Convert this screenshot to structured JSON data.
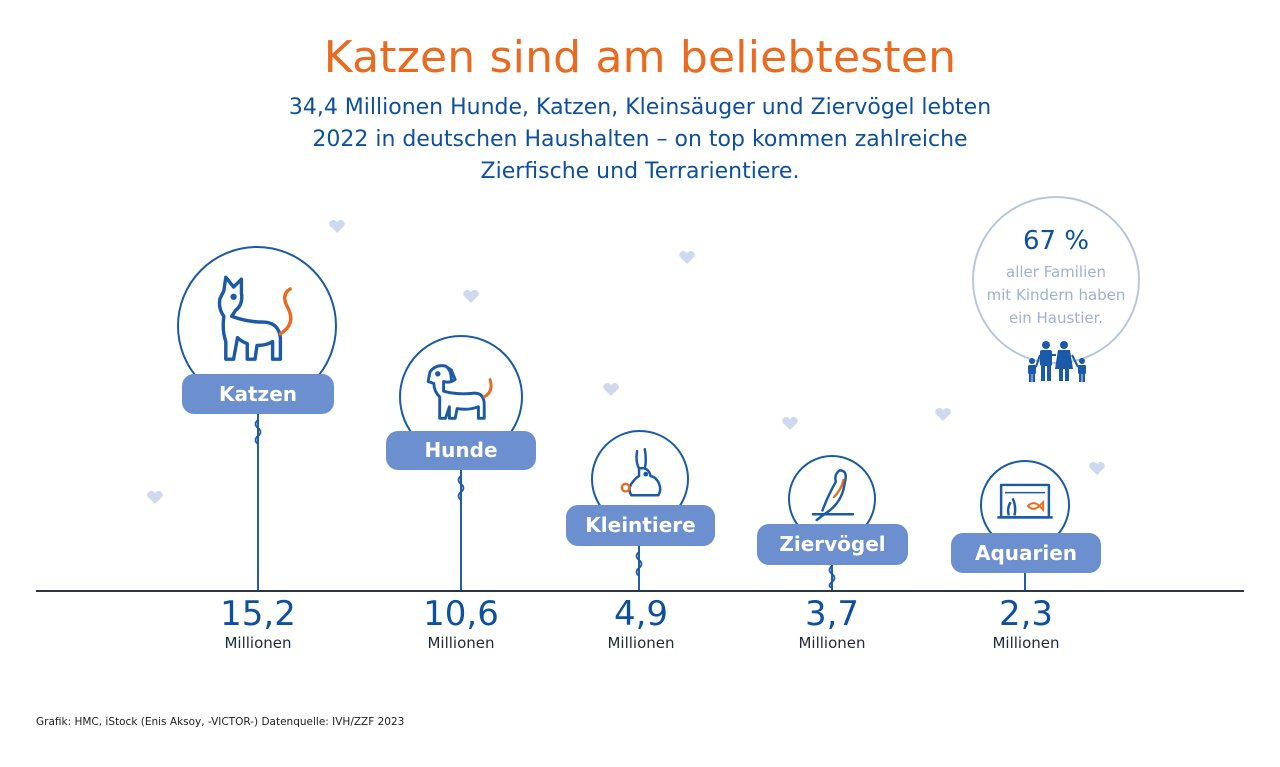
{
  "header": {
    "title": "Katzen sind am beliebtesten",
    "subtitle_lines": [
      "34,4 Millionen Hunde, Katzen, Kleinsäuger und Ziervögel lebten",
      "2022 in deutschen Haushalten – on top kommen zahlreiche",
      "Zierfische und Terrarientiere."
    ]
  },
  "chart_data": {
    "type": "bar",
    "title": "Katzen sind am beliebtesten",
    "categories": [
      "Katzen",
      "Hunde",
      "Kleintiere",
      "Ziervögel",
      "Aquarien"
    ],
    "values": [
      15.2,
      10.6,
      4.9,
      3.7,
      2.3
    ],
    "value_labels": [
      "15,2",
      "10,6",
      "4,9",
      "3,7",
      "2,3"
    ],
    "unit": "Millionen",
    "icons": [
      "cat-icon",
      "dog-icon",
      "rabbit-icon",
      "bird-icon",
      "aquarium-icon"
    ],
    "colors": {
      "pill": "#6b8fcf",
      "stroke": "#1a5aa8",
      "accent": "#ea6a1f"
    }
  },
  "callout": {
    "percent": "67 %",
    "lines": [
      "aller Familien",
      "mit Kindern haben",
      "ein Haustier."
    ],
    "icon": "family-icon"
  },
  "footer": {
    "source": "Grafik: HMC, iStock (Enis Aksoy, -VICTOR-) Datenquelle: IVH/ZZF 2023"
  }
}
